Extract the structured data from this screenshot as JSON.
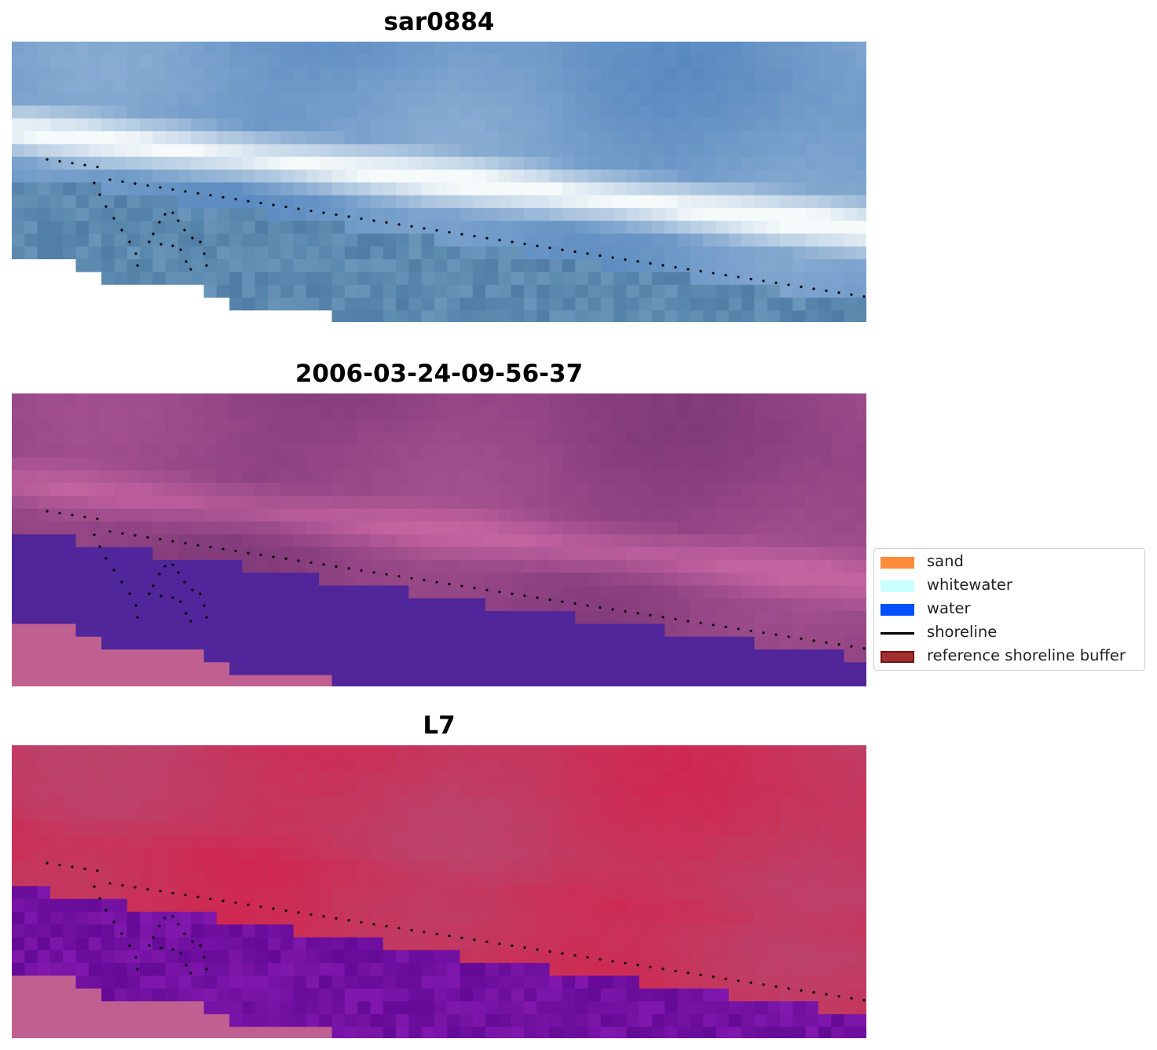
{
  "panels": [
    {
      "title": "sar0884",
      "style": "rgb"
    },
    {
      "title": "2006-03-24-09-56-37",
      "style": "classified"
    },
    {
      "title": "L7",
      "style": "index"
    }
  ],
  "legend": {
    "items": [
      {
        "label": "sand",
        "color": "#ff8c3a",
        "kind": "patch"
      },
      {
        "label": "whitewater",
        "color": "#c8ffff",
        "kind": "patch"
      },
      {
        "label": "water",
        "color": "#0050ff",
        "kind": "patch"
      },
      {
        "label": "shoreline",
        "color": "#000000",
        "kind": "line"
      },
      {
        "label": "reference shoreline buffer",
        "color": "#a03030",
        "kind": "patch"
      }
    ]
  },
  "colors": {
    "nodata_rgb": "#ffffff",
    "nodata_other": "#c06090",
    "water_class": "#50269a",
    "shoreline": "#000000"
  }
}
